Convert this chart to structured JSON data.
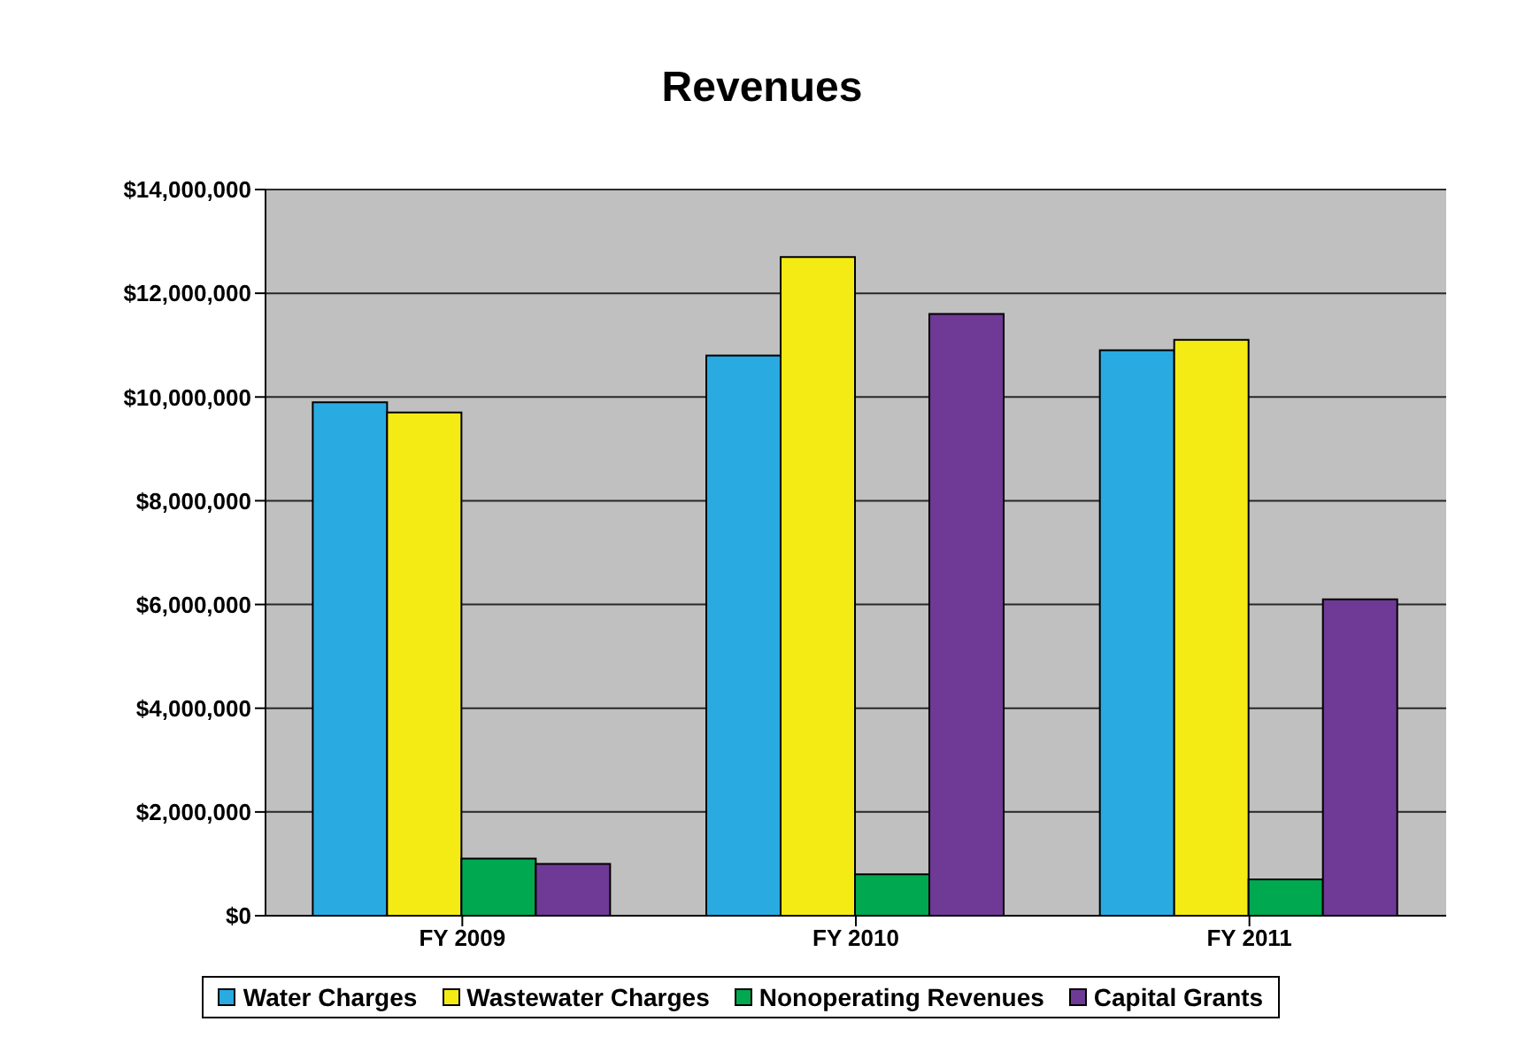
{
  "chart_data": {
    "type": "bar",
    "title": "Revenues",
    "categories": [
      "FY 2009",
      "FY 2010",
      "FY 2011"
    ],
    "series": [
      {
        "name": "Water Charges",
        "color": "#29abe2",
        "values": [
          9900000,
          10800000,
          10900000
        ]
      },
      {
        "name": "Wastewater Charges",
        "color": "#f5eb14",
        "values": [
          9700000,
          12700000,
          11100000
        ]
      },
      {
        "name": "Nonoperating Revenues",
        "color": "#00a84f",
        "values": [
          1100000,
          800000,
          700000
        ]
      },
      {
        "name": "Capital Grants",
        "color": "#6f3996",
        "values": [
          1000000,
          11600000,
          6100000
        ]
      }
    ],
    "ylim": [
      0,
      14000000
    ],
    "yticks": [
      {
        "value": 0,
        "label": "$0"
      },
      {
        "value": 2000000,
        "label": "$2,000,000"
      },
      {
        "value": 4000000,
        "label": "$4,000,000"
      },
      {
        "value": 6000000,
        "label": "$6,000,000"
      },
      {
        "value": 8000000,
        "label": "$8,000,000"
      },
      {
        "value": 10000000,
        "label": "$10,000,000"
      },
      {
        "value": 12000000,
        "label": "$12,000,000"
      },
      {
        "value": 14000000,
        "label": "$14,000,000"
      }
    ],
    "grid": "y",
    "legend": "bottom"
  }
}
